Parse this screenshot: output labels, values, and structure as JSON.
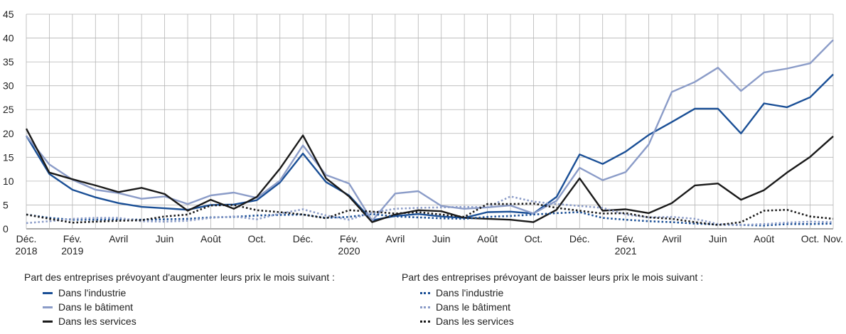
{
  "chart_data": {
    "type": "line",
    "x_axis": {
      "tick_labels": [
        {
          "index": 0,
          "lines": [
            "Déc.",
            "2018"
          ]
        },
        {
          "index": 2,
          "lines": [
            "Fév.",
            "2019"
          ]
        },
        {
          "index": 4,
          "lines": [
            "Avril"
          ]
        },
        {
          "index": 6,
          "lines": [
            "Juin"
          ]
        },
        {
          "index": 8,
          "lines": [
            "Août"
          ]
        },
        {
          "index": 10,
          "lines": [
            "Oct."
          ]
        },
        {
          "index": 12,
          "lines": [
            "Déc."
          ]
        },
        {
          "index": 14,
          "lines": [
            "Fév.",
            "2020"
          ]
        },
        {
          "index": 16,
          "lines": [
            "Avril"
          ]
        },
        {
          "index": 18,
          "lines": [
            "Juin"
          ]
        },
        {
          "index": 20,
          "lines": [
            "Août"
          ]
        },
        {
          "index": 22,
          "lines": [
            "Oct."
          ]
        },
        {
          "index": 24,
          "lines": [
            "Déc."
          ]
        },
        {
          "index": 26,
          "lines": [
            "Fév.",
            "2021"
          ]
        },
        {
          "index": 28,
          "lines": [
            "Avril"
          ]
        },
        {
          "index": 30,
          "lines": [
            "Juin"
          ]
        },
        {
          "index": 32,
          "lines": [
            "Août"
          ]
        },
        {
          "index": 34,
          "lines": [
            "Oct."
          ]
        },
        {
          "index": 35,
          "lines": [
            "Nov."
          ]
        }
      ],
      "n_points": 36
    },
    "y_axis": {
      "ylim": [
        0,
        45
      ],
      "ticks": [
        0,
        5,
        10,
        15,
        20,
        25,
        30,
        35,
        40,
        45
      ]
    },
    "grid": true,
    "series": [
      {
        "name": "Dans l'industrie",
        "group": "increase",
        "color": "#1a4f96",
        "style": "solid",
        "values": [
          19.5,
          11.5,
          8.2,
          6.6,
          5.4,
          4.6,
          4.3,
          4.0,
          5.0,
          5.1,
          6.0,
          9.7,
          15.8,
          9.8,
          7.0,
          1.8,
          2.7,
          3.1,
          2.6,
          2.3,
          3.5,
          3.6,
          3.2,
          6.7,
          15.6,
          13.6,
          16.2,
          19.7,
          22.4,
          25.2,
          25.2,
          20.0,
          26.3,
          25.5,
          27.6,
          32.4
        ]
      },
      {
        "name": "Dans le bâtiment",
        "group": "increase",
        "color": "#8b9cc8",
        "style": "solid",
        "values": [
          19.5,
          13.5,
          10.3,
          8.2,
          7.5,
          6.3,
          6.8,
          5.2,
          7.0,
          7.6,
          6.5,
          10.1,
          17.5,
          11.3,
          9.5,
          1.7,
          7.4,
          7.9,
          4.8,
          4.2,
          4.5,
          4.9,
          3.2,
          5.9,
          12.8,
          10.2,
          11.9,
          17.7,
          28.7,
          30.8,
          33.8,
          28.9,
          32.8,
          33.6,
          34.7,
          39.6
        ]
      },
      {
        "name": "Dans les services",
        "group": "increase",
        "color": "#1a1a1a",
        "style": "solid",
        "values": [
          21.0,
          11.8,
          10.4,
          9.1,
          7.7,
          8.6,
          7.3,
          3.8,
          6.1,
          4.2,
          6.7,
          12.6,
          19.6,
          10.6,
          6.8,
          1.4,
          3.0,
          3.9,
          3.7,
          2.3,
          2.1,
          1.9,
          1.4,
          4.0,
          10.6,
          3.8,
          4.1,
          3.3,
          5.4,
          9.1,
          9.5,
          6.1,
          8.1,
          11.8,
          15.1,
          19.4
        ]
      },
      {
        "name": "Dans l'industrie",
        "group": "decrease",
        "color": "#1a4f96",
        "style": "dotted",
        "values": [
          3.0,
          2.3,
          1.9,
          1.9,
          2.0,
          1.9,
          2.0,
          2.1,
          2.4,
          2.5,
          2.8,
          2.9,
          3.0,
          2.3,
          2.5,
          3.1,
          2.6,
          2.4,
          2.2,
          2.1,
          2.5,
          2.7,
          3.0,
          3.3,
          3.5,
          2.3,
          1.9,
          1.6,
          1.4,
          1.1,
          0.9,
          0.8,
          0.7,
          1.0,
          1.0,
          1.1
        ]
      },
      {
        "name": "Dans le bâtiment",
        "group": "decrease",
        "color": "#8b9cc8",
        "style": "dotted",
        "values": [
          1.2,
          1.6,
          2.1,
          2.3,
          2.3,
          1.6,
          1.5,
          1.7,
          2.3,
          2.6,
          2.0,
          3.2,
          4.1,
          2.8,
          1.9,
          3.4,
          4.2,
          4.4,
          4.5,
          4.6,
          4.5,
          6.8,
          5.7,
          5.2,
          4.8,
          4.4,
          3.0,
          2.4,
          2.5,
          2.1,
          1.0,
          0.8,
          1.0,
          1.3,
          1.5,
          1.4
        ]
      },
      {
        "name": "Dans les services",
        "group": "decrease",
        "color": "#1a1a1a",
        "style": "dotted",
        "values": [
          3.0,
          2.1,
          1.3,
          1.5,
          1.7,
          1.8,
          2.6,
          3.0,
          4.9,
          5.0,
          3.9,
          3.5,
          3.0,
          2.2,
          3.9,
          3.6,
          3.2,
          3.5,
          3.0,
          2.5,
          5.2,
          5.2,
          5.3,
          4.4,
          3.8,
          3.2,
          3.3,
          2.4,
          2.1,
          1.4,
          0.8,
          1.4,
          3.8,
          4.0,
          2.6,
          2.1
        ]
      }
    ]
  },
  "legend": {
    "increase_title": "Part des entreprises prévoyant d'augmenter leurs prix le mois suivant :",
    "decrease_title": "Part des entreprises prévoyant de baisser leurs prix le mois suivant :",
    "increase_items": [
      "Dans l'industrie",
      "Dans le bâtiment",
      "Dans les services"
    ],
    "decrease_items": [
      "Dans l'industrie",
      "Dans le bâtiment",
      "Dans les services"
    ]
  }
}
